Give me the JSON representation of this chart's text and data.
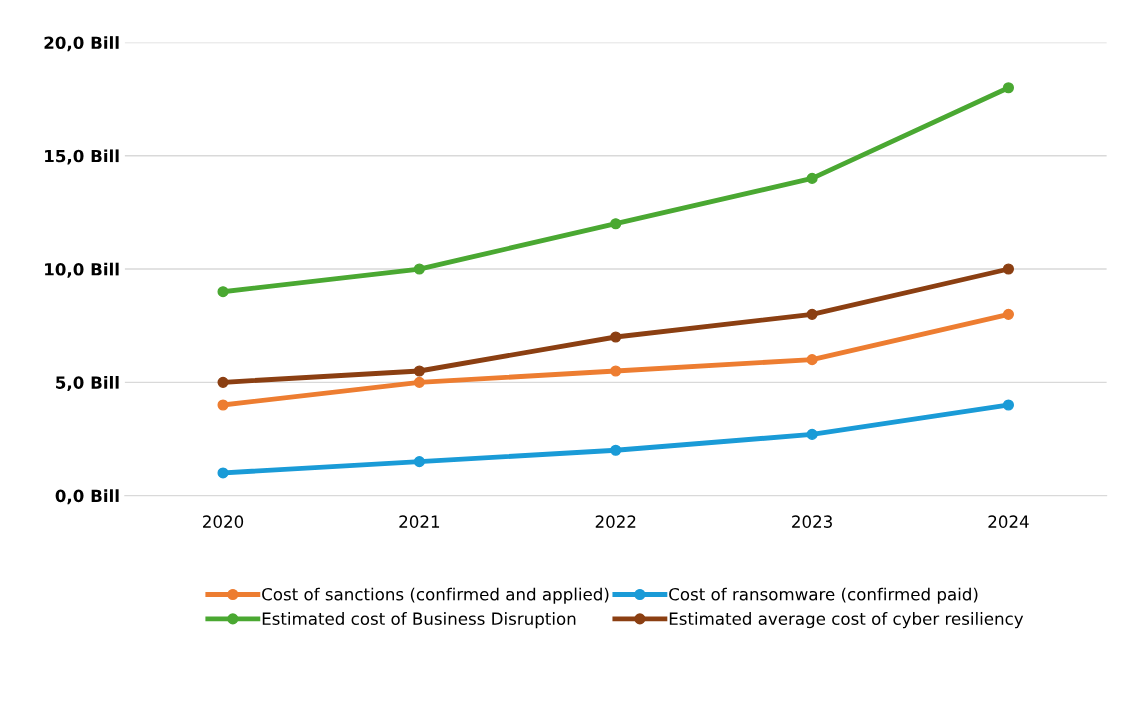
{
  "chart_data": {
    "type": "line",
    "categories": [
      "2020",
      "2021",
      "2022",
      "2023",
      "2024"
    ],
    "series": [
      {
        "name": "Cost of sanctions (confirmed and applied)",
        "color": "#ed7d31",
        "values": [
          4,
          5,
          5.5,
          6,
          8
        ]
      },
      {
        "name": "Cost of ransomware (confirmed paid)",
        "color": "#1a9bd7",
        "values": [
          1,
          1.5,
          2,
          2.7,
          4
        ]
      },
      {
        "name": "Estimated cost of Business Disruption",
        "color": "#4aa832",
        "values": [
          9,
          10,
          12,
          14,
          18
        ]
      },
      {
        "name": "Estimated average cost of cyber resiliency",
        "color": "#8b3f12",
        "values": [
          5,
          5.5,
          7,
          8,
          10
        ]
      }
    ],
    "ylim": [
      0,
      20
    ],
    "yticks": [
      {
        "value": 0,
        "label": "0,0 Bill"
      },
      {
        "value": 5,
        "label": "5,0 Bill"
      },
      {
        "value": 10,
        "label": "10,0 Bill"
      },
      {
        "value": 15,
        "label": "15,0 Bill"
      },
      {
        "value": 20,
        "label": "20,0 Bill"
      }
    ],
    "grid": "y",
    "legend": "bottom",
    "marker": "circle",
    "line_style": "solid"
  }
}
